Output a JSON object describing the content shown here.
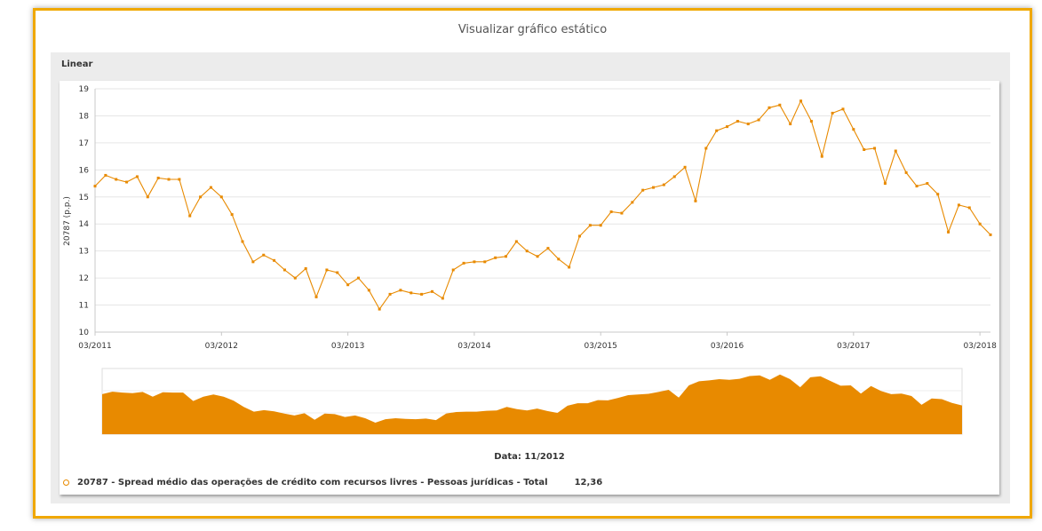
{
  "header": {
    "title": "Visualizar gráfico estático"
  },
  "panel": {
    "label": "Linear"
  },
  "readout": {
    "date": "Data: 11/2012"
  },
  "legend": {
    "series_label": "20787 - Spread médio das operações de crédito com recursos livres - Pessoas jurídicas - Total",
    "value": "12,36"
  },
  "colors": {
    "series": "#e88a00",
    "frame": "#f0a800"
  },
  "chart_data": {
    "type": "line",
    "ylabel": "20787 (p.p.)",
    "xlabel": "",
    "ylim": [
      10,
      19
    ],
    "yticks": [
      10,
      11,
      12,
      13,
      14,
      15,
      16,
      17,
      18,
      19
    ],
    "xtick_labels": [
      "03/2011",
      "03/2012",
      "03/2013",
      "03/2014",
      "03/2015",
      "03/2016",
      "03/2017",
      "03/2018"
    ],
    "x_start": "03/2011",
    "x_step": "1 month",
    "navigator": true,
    "series": [
      {
        "values": [
          15.4,
          15.8,
          15.65,
          15.55,
          15.75,
          15.0,
          15.7,
          15.65,
          15.65,
          14.3,
          15.0,
          15.35,
          15.0,
          14.35,
          13.35,
          12.6,
          12.85,
          12.65,
          12.3,
          12.0,
          12.35,
          11.3,
          12.3,
          12.2,
          11.75,
          12.0,
          11.55,
          10.85,
          11.4,
          11.55,
          11.45,
          11.4,
          11.5,
          11.25,
          12.3,
          12.55,
          12.6,
          12.6,
          12.75,
          12.8,
          13.35,
          13.0,
          12.8,
          13.1,
          12.7,
          12.4,
          13.55,
          13.95,
          13.95,
          14.45,
          14.4,
          14.8,
          15.25,
          15.35,
          15.45,
          15.75,
          16.1,
          14.85,
          16.8,
          17.45,
          17.6,
          17.8,
          17.7,
          17.85,
          18.3,
          18.4,
          17.7,
          18.55,
          17.8,
          16.5,
          18.1,
          18.25,
          17.5,
          16.75,
          16.8,
          15.5,
          16.7,
          15.9,
          15.4,
          15.5,
          15.1,
          13.7,
          14.7,
          14.6,
          14.0,
          13.6
        ]
      }
    ]
  }
}
